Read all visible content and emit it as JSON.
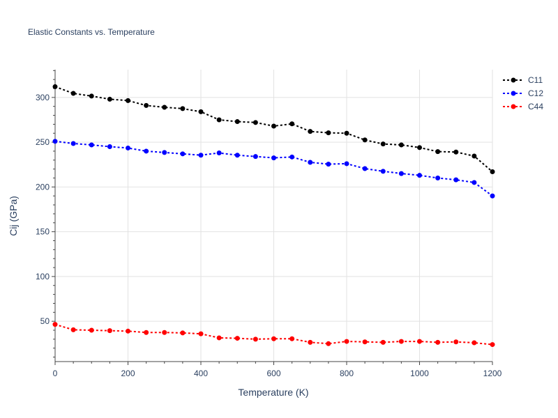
{
  "chart_data": {
    "type": "line",
    "title": "Elastic Constants vs. Temperature",
    "xlabel": "Temperature (K)",
    "ylabel": "Cij (GPa)",
    "xlim": [
      0,
      1200
    ],
    "ylim": [
      5,
      331
    ],
    "xticks": [
      0,
      200,
      400,
      600,
      800,
      1000,
      1200
    ],
    "yticks": [
      50,
      100,
      150,
      200,
      250,
      300
    ],
    "grid": true,
    "legend_position": "top-right",
    "x": [
      0,
      50,
      100,
      150,
      200,
      250,
      300,
      350,
      400,
      450,
      500,
      550,
      600,
      650,
      700,
      750,
      800,
      850,
      900,
      950,
      1000,
      1050,
      1100,
      1150,
      1200
    ],
    "series": [
      {
        "name": "C11",
        "color": "#000000",
        "values": [
          312,
          304.5,
          301.5,
          298,
          296.5,
          291,
          289,
          287.5,
          284,
          275,
          273,
          272,
          268,
          270.5,
          262,
          260.5,
          260,
          252.5,
          248,
          247,
          244,
          239.5,
          239,
          234.5,
          217
        ]
      },
      {
        "name": "C12",
        "color": "#0000ff",
        "values": [
          251,
          248.5,
          247,
          245,
          243.5,
          240,
          238.5,
          237,
          235.5,
          238,
          235.5,
          234,
          232.5,
          233.5,
          227.5,
          225.5,
          226,
          220.5,
          217.5,
          215,
          213,
          210,
          208,
          205,
          190
        ]
      },
      {
        "name": "C44",
        "color": "#ff0000",
        "values": [
          46.5,
          40.5,
          40,
          39.5,
          39,
          37.5,
          37.5,
          37,
          36,
          31.5,
          31,
          30,
          30.5,
          30.5,
          26.5,
          25,
          27.5,
          27,
          26.5,
          27.5,
          27.5,
          26.5,
          27,
          26,
          24
        ]
      }
    ]
  }
}
